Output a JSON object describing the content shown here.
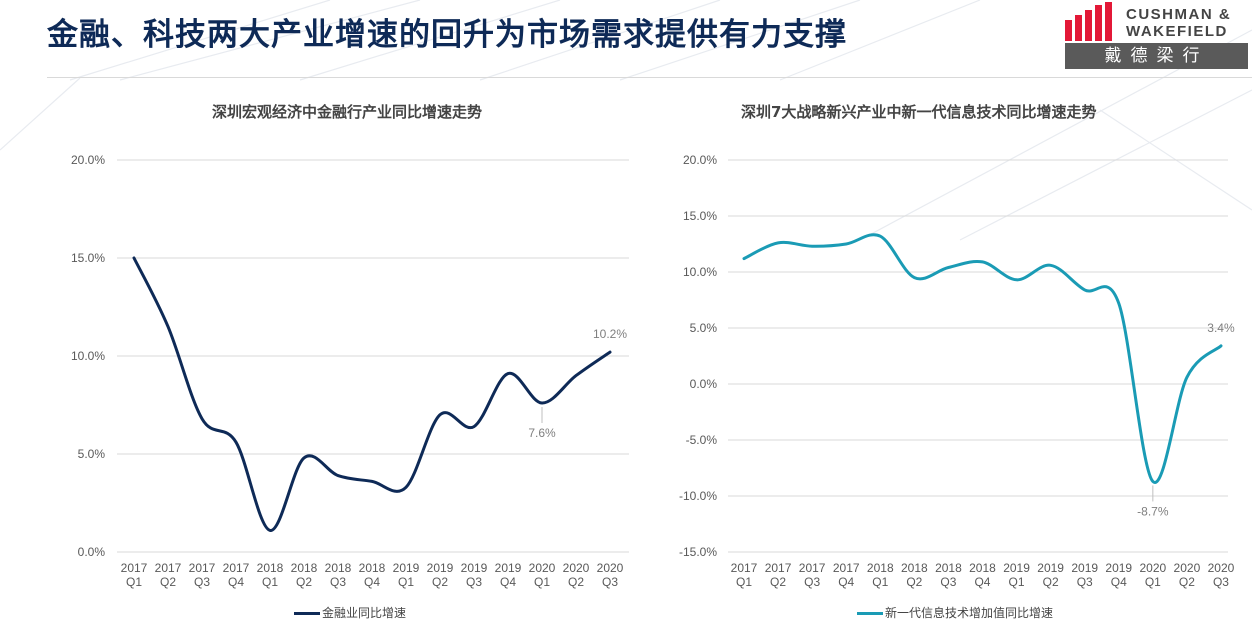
{
  "header": {
    "title": "金融、科技两大产业增速的回升为市场需求提供有力支撑",
    "logo_line1": "CUSHMAN &",
    "logo_line2": "WAKEFIELD",
    "logo_cn": "戴德梁行",
    "brand_color": "#e31837"
  },
  "chart_data": [
    {
      "type": "line",
      "title": "深圳宏观经济中金融行产业同比增速走势",
      "categories": [
        [
          "2017",
          "Q1"
        ],
        [
          "2017",
          "Q2"
        ],
        [
          "2017",
          "Q3"
        ],
        [
          "2017",
          "Q4"
        ],
        [
          "2018",
          "Q1"
        ],
        [
          "2018",
          "Q2"
        ],
        [
          "2018",
          "Q3"
        ],
        [
          "2018",
          "Q4"
        ],
        [
          "2019",
          "Q1"
        ],
        [
          "2019",
          "Q2"
        ],
        [
          "2019",
          "Q3"
        ],
        [
          "2019",
          "Q4"
        ],
        [
          "2020",
          "Q1"
        ],
        [
          "2020",
          "Q2"
        ],
        [
          "2020",
          "Q3"
        ]
      ],
      "series": [
        {
          "name": "金融业同比增速",
          "values": [
            15.0,
            11.5,
            6.8,
            5.6,
            1.1,
            4.8,
            3.9,
            3.6,
            3.3,
            7.0,
            6.4,
            9.1,
            7.6,
            9.0,
            10.2
          ],
          "color": "#0e2a57"
        }
      ],
      "yticks": [
        "0.0%",
        "5.0%",
        "10.0%",
        "15.0%",
        "20.0%"
      ],
      "ylim": [
        0,
        20
      ],
      "annotations": [
        {
          "index": 12,
          "label": "7.6%",
          "pos": "below"
        },
        {
          "index": 14,
          "label": "10.2%",
          "pos": "above"
        }
      ],
      "legend_position": "bottom",
      "grid": true
    },
    {
      "type": "line",
      "title": "深圳7大战略新兴产业中新一代信息技术同比增速走势",
      "categories": [
        [
          "2017",
          "Q1"
        ],
        [
          "2017",
          "Q2"
        ],
        [
          "2017",
          "Q3"
        ],
        [
          "2017",
          "Q4"
        ],
        [
          "2018",
          "Q1"
        ],
        [
          "2018",
          "Q2"
        ],
        [
          "2018",
          "Q3"
        ],
        [
          "2018",
          "Q4"
        ],
        [
          "2019",
          "Q1"
        ],
        [
          "2019",
          "Q2"
        ],
        [
          "2019",
          "Q3"
        ],
        [
          "2019",
          "Q4"
        ],
        [
          "2020",
          "Q1"
        ],
        [
          "2020",
          "Q2"
        ],
        [
          "2020",
          "Q3"
        ]
      ],
      "series": [
        {
          "name": "新一代信息技术增加值同比增速",
          "values": [
            11.2,
            12.6,
            12.3,
            12.5,
            13.2,
            9.5,
            10.4,
            10.9,
            9.3,
            10.6,
            8.4,
            7.2,
            -8.7,
            0.6,
            3.4
          ],
          "color": "#1a9bb5"
        }
      ],
      "yticks": [
        "-15.0%",
        "-10.0%",
        "-5.0%",
        "0.0%",
        "5.0%",
        "10.0%",
        "15.0%",
        "20.0%"
      ],
      "ylim": [
        -15,
        20
      ],
      "annotations": [
        {
          "index": 12,
          "label": "-8.7%",
          "pos": "below"
        },
        {
          "index": 14,
          "label": "3.4%",
          "pos": "above"
        }
      ],
      "legend_position": "bottom",
      "grid": true
    }
  ]
}
